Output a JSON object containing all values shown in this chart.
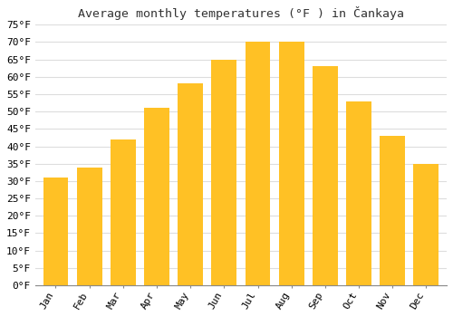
{
  "title": "Average monthly temperatures (°F ) in Čankaya",
  "months": [
    "Jan",
    "Feb",
    "Mar",
    "Apr",
    "May",
    "Jun",
    "Jul",
    "Aug",
    "Sep",
    "Oct",
    "Nov",
    "Dec"
  ],
  "values": [
    31,
    34,
    42,
    51,
    58,
    65,
    70,
    70,
    63,
    53,
    43,
    35
  ],
  "bar_color_top": "#FFC125",
  "bar_color_bottom": "#FFB300",
  "bar_edge_color": "none",
  "background_color": "#FFFFFF",
  "grid_color": "#DDDDDD",
  "ylim": [
    0,
    75
  ],
  "ytick_step": 5,
  "title_fontsize": 9.5,
  "tick_fontsize": 8,
  "bar_width": 0.75
}
